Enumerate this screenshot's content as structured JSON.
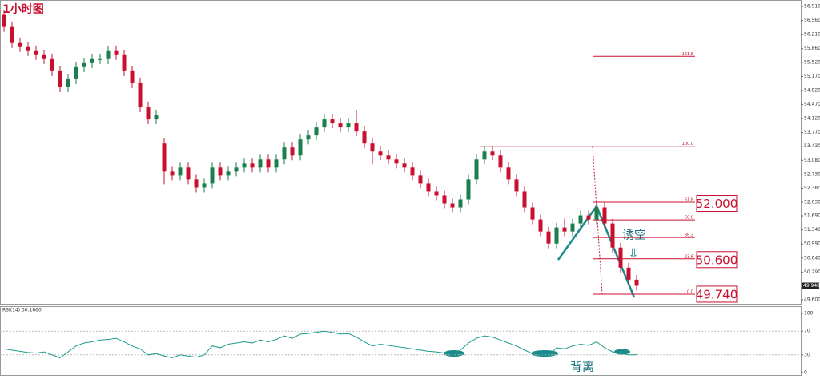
{
  "chart_data": {
    "type": "candlestick",
    "title": "1小时图",
    "up_color": "#1a7f4e",
    "down_color": "#c8102e",
    "ylim": [
      49.5,
      57.07
    ],
    "yticks": [
      {
        "value": 56.91,
        "label": "56.910"
      },
      {
        "value": 56.56,
        "label": "56.560"
      },
      {
        "value": 56.21,
        "label": "56.210"
      },
      {
        "value": 55.86,
        "label": "55.860"
      },
      {
        "value": 55.52,
        "label": "55.520"
      },
      {
        "value": 55.17,
        "label": "55.170"
      },
      {
        "value": 54.82,
        "label": "54.820"
      },
      {
        "value": 54.47,
        "label": "54.470"
      },
      {
        "value": 54.12,
        "label": "54.120"
      },
      {
        "value": 53.77,
        "label": "53.770"
      },
      {
        "value": 53.43,
        "label": "53.430"
      },
      {
        "value": 53.08,
        "label": "53.080"
      },
      {
        "value": 52.73,
        "label": "52.730"
      },
      {
        "value": 52.38,
        "label": "52.380"
      },
      {
        "value": 52.03,
        "label": "52.030"
      },
      {
        "value": 51.69,
        "label": "51.690"
      },
      {
        "value": 51.34,
        "label": "51.340"
      },
      {
        "value": 50.99,
        "label": "50.990"
      },
      {
        "value": 50.64,
        "label": "50.640"
      },
      {
        "value": 50.29,
        "label": "50.290"
      },
      {
        "value": 49.6,
        "label": "49.600"
      }
    ],
    "open": [
      56.7,
      56.4,
      56.0,
      55.9,
      55.8,
      55.7,
      55.6,
      55.3,
      54.9,
      55.1,
      55.4,
      55.5,
      55.6,
      55.6,
      55.8,
      55.7,
      55.3,
      55.0,
      54.4,
      54.1,
      53.5,
      52.8,
      52.7,
      52.9,
      52.6,
      52.4,
      52.5,
      52.9,
      52.7,
      52.8,
      52.9,
      53.0,
      52.9,
      53.1,
      52.9,
      53.1,
      53.4,
      53.2,
      53.6,
      53.7,
      53.9,
      54.1,
      54.0,
      53.9,
      54.0,
      53.8,
      53.5,
      53.3,
      53.2,
      53.1,
      53.0,
      52.9,
      52.7,
      52.5,
      52.3,
      52.2,
      52.0,
      51.9,
      52.1,
      52.6,
      53.1,
      53.3,
      53.2,
      52.9,
      52.6,
      52.3,
      51.9,
      51.6,
      51.3,
      51.0,
      51.4,
      51.3,
      51.5,
      51.7,
      51.6,
      51.9,
      51.5,
      50.9,
      50.4,
      50.1
    ],
    "high": [
      56.82,
      56.52,
      56.12,
      56.02,
      55.92,
      55.82,
      55.72,
      55.42,
      55.22,
      55.52,
      55.62,
      55.72,
      55.72,
      55.92,
      55.92,
      55.82,
      55.42,
      55.12,
      54.52,
      54.32,
      53.62,
      52.92,
      53.02,
      53.02,
      52.72,
      52.62,
      53.02,
      53.02,
      52.92,
      53.02,
      53.12,
      53.12,
      53.22,
      53.22,
      53.22,
      53.52,
      53.52,
      53.72,
      53.82,
      54.02,
      54.22,
      54.22,
      54.12,
      54.12,
      54.32,
      53.92,
      53.62,
      53.42,
      53.32,
      53.22,
      53.12,
      53.02,
      52.82,
      52.62,
      52.42,
      52.32,
      52.12,
      52.22,
      52.72,
      53.22,
      53.42,
      53.42,
      53.32,
      53.02,
      52.72,
      52.42,
      52.02,
      51.72,
      51.42,
      51.52,
      51.62,
      51.62,
      51.82,
      51.82,
      52.02,
      52.02,
      51.62,
      51.02,
      50.52,
      50.22
    ],
    "low": [
      56.28,
      55.88,
      55.78,
      55.68,
      55.58,
      55.48,
      55.18,
      54.78,
      54.78,
      54.98,
      55.28,
      55.38,
      55.48,
      55.48,
      55.58,
      55.18,
      54.88,
      54.28,
      53.98,
      53.98,
      52.48,
      52.58,
      52.58,
      52.48,
      52.28,
      52.28,
      52.38,
      52.58,
      52.58,
      52.68,
      52.78,
      52.78,
      52.78,
      52.78,
      52.78,
      52.98,
      53.08,
      53.08,
      53.48,
      53.58,
      53.78,
      53.88,
      53.78,
      53.78,
      53.68,
      53.38,
      52.98,
      53.08,
      52.98,
      52.88,
      52.78,
      52.58,
      52.38,
      52.18,
      52.08,
      51.88,
      51.78,
      51.78,
      51.98,
      52.48,
      52.98,
      53.08,
      52.78,
      52.48,
      52.18,
      51.78,
      51.48,
      51.18,
      50.88,
      50.88,
      51.18,
      51.18,
      51.38,
      51.48,
      51.48,
      51.38,
      50.78,
      50.28,
      49.98,
      49.83
    ],
    "close": [
      56.4,
      56.0,
      55.9,
      55.8,
      55.7,
      55.6,
      55.3,
      54.9,
      55.1,
      55.4,
      55.5,
      55.6,
      55.6,
      55.8,
      55.7,
      55.3,
      55.0,
      54.4,
      54.1,
      54.2,
      52.8,
      52.7,
      52.9,
      52.6,
      52.4,
      52.5,
      52.9,
      52.7,
      52.8,
      52.9,
      53.0,
      52.9,
      53.1,
      52.9,
      53.1,
      53.4,
      53.2,
      53.6,
      53.7,
      53.9,
      54.1,
      54.0,
      53.9,
      54.0,
      53.8,
      53.5,
      53.3,
      53.2,
      53.1,
      53.0,
      52.9,
      52.7,
      52.5,
      52.3,
      52.2,
      52.0,
      51.9,
      52.1,
      52.6,
      53.1,
      53.3,
      53.2,
      52.9,
      52.6,
      52.3,
      51.9,
      51.6,
      51.3,
      51.0,
      51.4,
      51.3,
      51.5,
      51.7,
      51.6,
      51.9,
      51.5,
      50.9,
      50.4,
      50.1,
      49.95
    ],
    "current_price": {
      "value": 49.948,
      "label": "49.948"
    },
    "fib_color": "#c8102e",
    "fib_levels": [
      {
        "label": "161.8",
        "price": 55.67
      },
      {
        "label": "100.0",
        "price": 53.43
      },
      {
        "label": "61.8",
        "price": 52.03
      },
      {
        "label": "50.0",
        "price": 51.59
      },
      {
        "label": "38.2",
        "price": 51.15
      },
      {
        "label": "23.6",
        "price": 50.62
      },
      {
        "label": "0.0",
        "price": 49.74
      }
    ],
    "price_labels": [
      {
        "value": 52.0,
        "label": "52.000"
      },
      {
        "value": 50.6,
        "label": "50.600"
      },
      {
        "value": 49.74,
        "label": "49.740"
      }
    ],
    "annotations": [
      "诱空",
      "背离"
    ],
    "rsi": {
      "label": "RSI(14) 30.1660",
      "color": "#1a9a8a",
      "ylim": [
        0,
        100
      ],
      "yticks": [
        0,
        30,
        70,
        100
      ],
      "dashed_levels": [
        30,
        70
      ],
      "values": [
        40,
        38,
        36,
        34,
        33,
        35,
        30,
        25,
        35,
        45,
        50,
        52,
        55,
        56,
        58,
        52,
        45,
        40,
        30,
        32,
        28,
        25,
        30,
        28,
        26,
        30,
        45,
        42,
        48,
        50,
        52,
        50,
        55,
        52,
        56,
        62,
        58,
        65,
        66,
        68,
        70,
        68,
        65,
        66,
        60,
        52,
        45,
        48,
        46,
        44,
        42,
        40,
        38,
        36,
        35,
        33,
        30,
        38,
        50,
        58,
        62,
        60,
        55,
        50,
        45,
        38,
        32,
        30,
        28,
        42,
        40,
        45,
        48,
        46,
        52,
        42,
        35,
        32,
        30,
        30.166
      ]
    }
  }
}
